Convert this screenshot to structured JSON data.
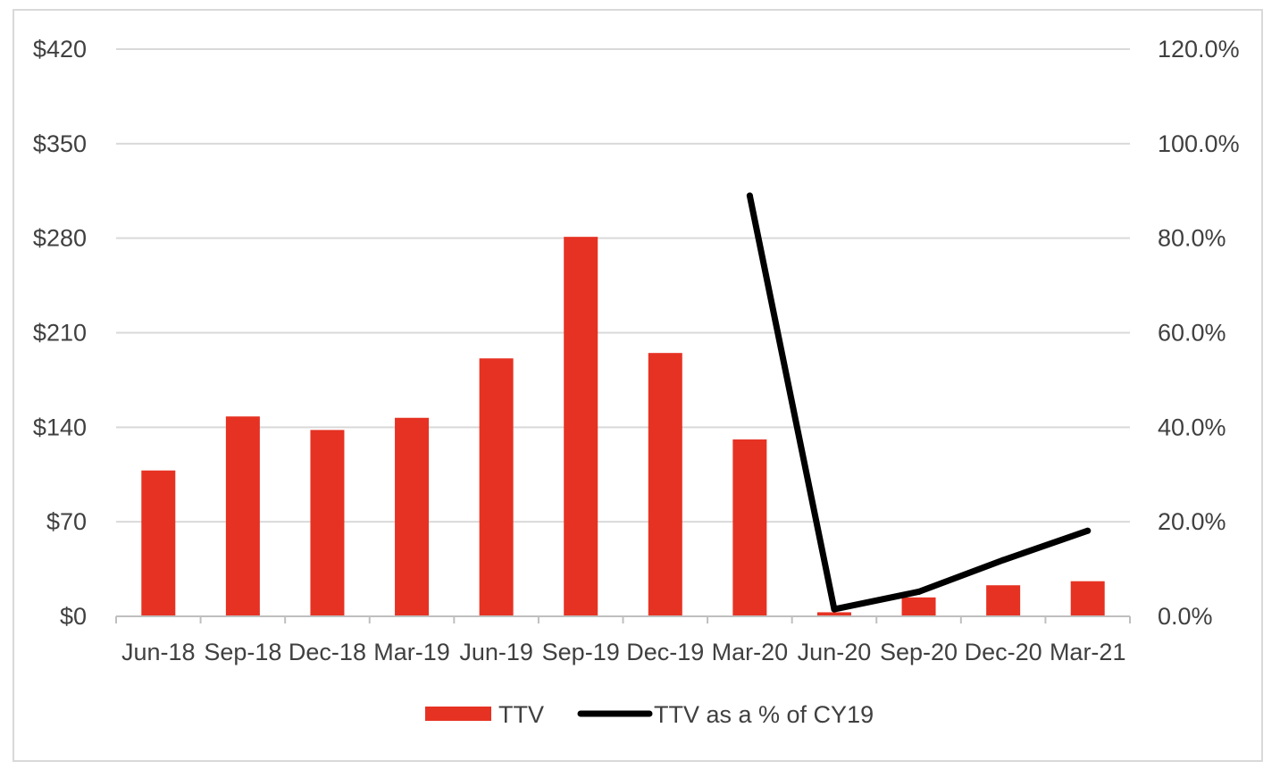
{
  "colors": {
    "bar": "#e63223",
    "line": "#000000",
    "grid": "#d9d9d9",
    "axis": "#bfbfbf",
    "text": "#404040"
  },
  "chart_data": {
    "type": "bar",
    "categories": [
      "Jun-18",
      "Sep-18",
      "Dec-18",
      "Mar-19",
      "Jun-19",
      "Sep-19",
      "Dec-19",
      "Mar-20",
      "Jun-20",
      "Sep-20",
      "Dec-20",
      "Mar-21"
    ],
    "series": [
      {
        "name": "TTV",
        "type": "bar",
        "axis": "left",
        "values": [
          108,
          148,
          138,
          147,
          191,
          281,
          195,
          131,
          3,
          14,
          23,
          26
        ]
      },
      {
        "name": "TTV as a % of CY19",
        "type": "line",
        "axis": "right",
        "values": [
          null,
          null,
          null,
          null,
          null,
          null,
          null,
          89.0,
          1.5,
          5.2,
          11.9,
          18.1
        ]
      }
    ],
    "y_left": {
      "ylim": [
        0,
        420
      ],
      "ticks": [
        0,
        70,
        140,
        210,
        280,
        350,
        420
      ],
      "tick_labels": [
        "$0",
        "$70",
        "$140",
        "$210",
        "$280",
        "$350",
        "$420"
      ]
    },
    "y_right": {
      "ylim": [
        0,
        120
      ],
      "ticks": [
        0,
        20,
        40,
        60,
        80,
        100,
        120
      ],
      "tick_labels": [
        "0.0%",
        "20.0%",
        "40.0%",
        "60.0%",
        "80.0%",
        "100.0%",
        "120.0%"
      ]
    },
    "grid": true,
    "legend": {
      "position": "bottom",
      "entries": [
        "TTV",
        "TTV as a % of CY19"
      ]
    }
  }
}
